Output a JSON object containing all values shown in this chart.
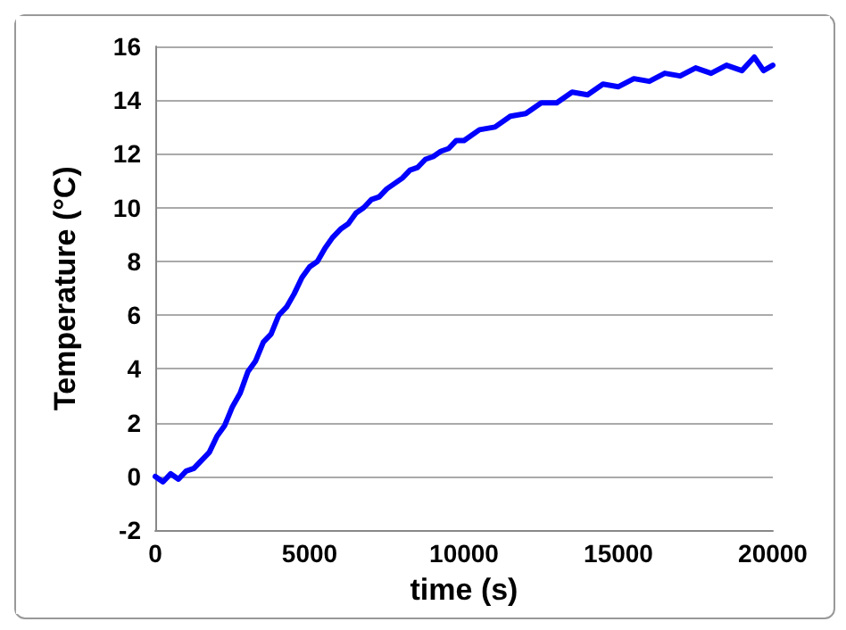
{
  "chart_data": {
    "type": "line",
    "xlabel": "time (s)",
    "ylabel": "Temperature (°C)",
    "xlim": [
      0,
      20000
    ],
    "xticks": [
      0,
      5000,
      10000,
      15000,
      20000
    ],
    "ylim": [
      -2,
      16
    ],
    "yticks": [
      -2,
      0,
      2,
      4,
      6,
      8,
      10,
      12,
      14,
      16
    ],
    "grid": "y",
    "marker": "none",
    "line_style": "solid",
    "series": [
      {
        "color": "#0000ff",
        "x": [
          0,
          250,
          500,
          750,
          1000,
          1250,
          1500,
          1750,
          2000,
          2250,
          2500,
          2750,
          3000,
          3250,
          3500,
          3750,
          4000,
          4250,
          4500,
          4750,
          5000,
          5250,
          5500,
          5750,
          6000,
          6250,
          6500,
          6750,
          7000,
          7250,
          7500,
          7750,
          8000,
          8250,
          8500,
          8750,
          9000,
          9250,
          9500,
          9750,
          10000,
          10500,
          11000,
          11500,
          12000,
          12500,
          13000,
          13500,
          14000,
          14500,
          15000,
          15500,
          16000,
          16500,
          17000,
          17500,
          18000,
          18500,
          19000,
          19400,
          19700,
          20000
        ],
        "values": [
          0.0,
          -0.2,
          0.1,
          -0.1,
          0.2,
          0.3,
          0.6,
          0.9,
          1.5,
          1.9,
          2.6,
          3.1,
          3.9,
          4.3,
          5.0,
          5.3,
          6.0,
          6.3,
          6.8,
          7.4,
          7.8,
          8.0,
          8.5,
          8.9,
          9.2,
          9.4,
          9.8,
          10.0,
          10.3,
          10.4,
          10.7,
          10.9,
          11.1,
          11.4,
          11.5,
          11.8,
          11.9,
          12.1,
          12.2,
          12.5,
          12.5,
          12.9,
          13.0,
          13.4,
          13.5,
          13.9,
          13.9,
          14.3,
          14.2,
          14.6,
          14.5,
          14.8,
          14.7,
          15.0,
          14.9,
          15.2,
          15.0,
          15.3,
          15.1,
          15.6,
          15.1,
          15.3
        ]
      }
    ]
  }
}
